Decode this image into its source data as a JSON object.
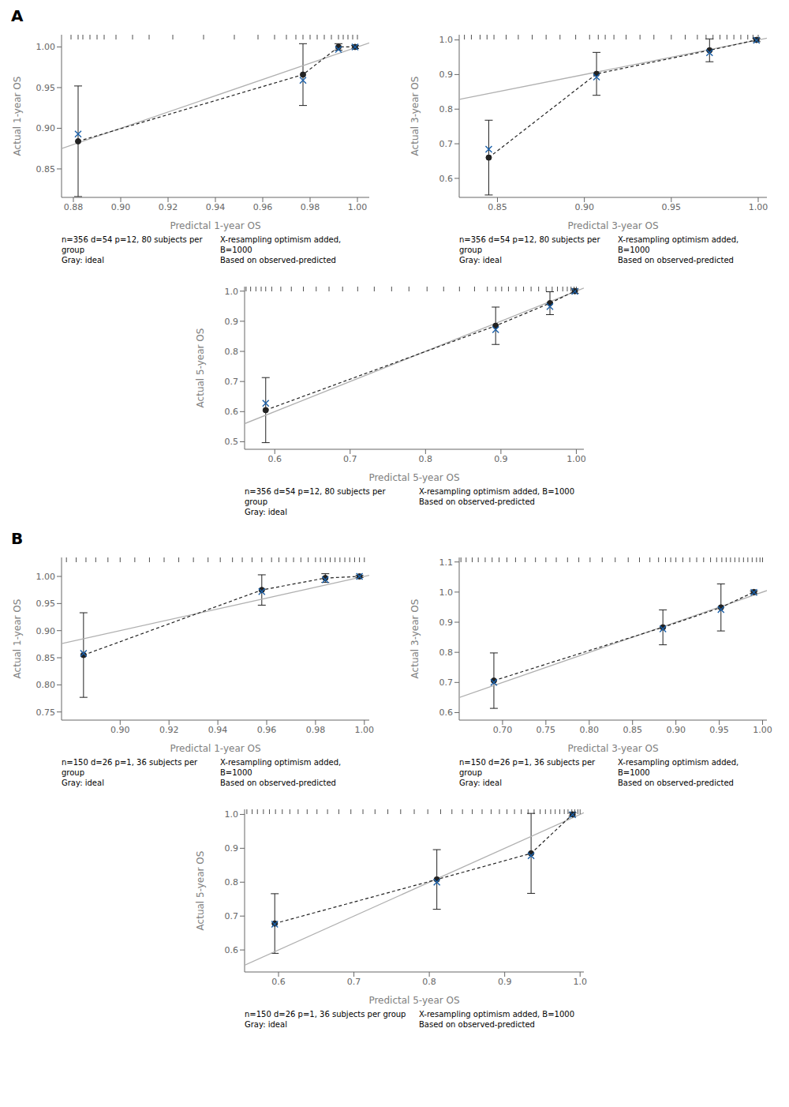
{
  "chart_data": [
    {
      "type": "line",
      "title": "A",
      "xlabel": "Predictal 1-year OS",
      "ylabel": "Actual 1-year OS",
      "xlim": [
        0.875,
        1.005
      ],
      "ylim": [
        0.815,
        1.015
      ],
      "xticks": [
        0.88,
        {
          "value": 0.9,
          "label": "0.90"
        },
        0.92,
        0.94,
        0.96,
        0.98,
        {
          "value": 1,
          "label": "1.00"
        }
      ],
      "yticks": [
        0.85,
        {
          "value": 0.9,
          "label": "0.90"
        },
        0.95,
        {
          "value": 1,
          "label": "1.00"
        }
      ],
      "series": [
        {
          "type": "line",
          "color": "#b0b0b0",
          "line_style": "solid",
          "marker": "none",
          "x": [
            0.875,
            1.005
          ],
          "values": [
            0.875,
            1.005
          ]
        },
        {
          "type": "line",
          "color": "#222222",
          "line_style": "dashed",
          "marker": "circle",
          "x": [
            0.882,
            0.977,
            0.992,
            0.999
          ],
          "values": [
            0.884,
            0.966,
            1.0,
            1.0
          ],
          "yerr_lo": [
            0.068,
            0.038,
            0.004,
            0.002
          ],
          "yerr_hi": [
            0.068,
            0.038,
            0.004,
            0.002
          ]
        },
        {
          "type": "scatter",
          "color": "#1a5fa8",
          "marker": "x",
          "x": [
            0.882,
            0.977,
            0.992,
            0.999
          ],
          "values": [
            0.893,
            0.959,
            0.997,
            1.0
          ]
        },
        {
          "type": "rug",
          "color": "#222222",
          "x": [
            0.879,
            0.882,
            0.884,
            0.887,
            0.89,
            0.893,
            0.898,
            0.905,
            0.912,
            0.922,
            0.935,
            0.948,
            0.958,
            0.965,
            0.97,
            0.974,
            0.977,
            0.98,
            0.983,
            0.986,
            0.989,
            0.992,
            0.994,
            0.996,
            0.998,
            1.0
          ]
        }
      ],
      "annotations": [
        "n=356 d=54 p=12, 80 subjects per group\nGray: ideal",
        "X-resampling optimism added, B=1000\nBased on observed-predicted"
      ]
    },
    {
      "type": "line",
      "xlabel": "Predictal 3-year OS",
      "ylabel": "Actual 3-year OS",
      "xlim": [
        0.828,
        1.005
      ],
      "ylim": [
        0.545,
        1.015
      ],
      "xticks": [
        0.85,
        {
          "value": 0.9,
          "label": "0.90"
        },
        0.95,
        {
          "value": 1,
          "label": "1.00"
        }
      ],
      "yticks": [
        0.6,
        0.7,
        0.8,
        0.9,
        {
          "value": 1,
          "label": "1.0"
        }
      ],
      "series": [
        {
          "type": "line",
          "color": "#b0b0b0",
          "line_style": "solid",
          "marker": "none",
          "x": [
            0.828,
            1.005
          ],
          "values": [
            0.828,
            1.005
          ]
        },
        {
          "type": "line",
          "color": "#222222",
          "line_style": "dashed",
          "marker": "circle",
          "x": [
            0.845,
            0.907,
            0.972,
            0.999
          ],
          "values": [
            0.66,
            0.902,
            0.97,
            1.0
          ],
          "yerr_lo": [
            0.108,
            0.062,
            0.033,
            0.005
          ],
          "yerr_hi": [
            0.108,
            0.062,
            0.033,
            0.005
          ]
        },
        {
          "type": "scatter",
          "color": "#1a5fa8",
          "marker": "x",
          "x": [
            0.845,
            0.907,
            0.972,
            0.999
          ],
          "values": [
            0.684,
            0.893,
            0.963,
            0.999
          ]
        },
        {
          "type": "rug",
          "color": "#222222",
          "x": [
            0.831,
            0.835,
            0.84,
            0.844,
            0.848,
            0.855,
            0.862,
            0.87,
            0.878,
            0.886,
            0.895,
            0.903,
            0.908,
            0.912,
            0.917,
            0.924,
            0.932,
            0.94,
            0.95,
            0.958,
            0.965,
            0.97,
            0.974,
            0.978,
            0.982,
            0.986,
            0.99,
            0.994,
            0.997,
            1.0
          ]
        }
      ],
      "annotations": [
        "n=356 d=54 p=12, 80 subjects per group\nGray: ideal",
        "X-resampling optimism added, B=1000\nBased on observed-predicted"
      ]
    },
    {
      "type": "line",
      "xlabel": "Predictal 5-year OS",
      "ylabel": "Actual 5-year OS",
      "xlim": [
        0.56,
        1.01
      ],
      "ylim": [
        0.475,
        1.015
      ],
      "xticks": [
        0.6,
        0.7,
        0.8,
        0.9,
        {
          "value": 1,
          "label": "1.00"
        }
      ],
      "yticks": [
        0.5,
        0.6,
        0.7,
        0.8,
        0.9,
        {
          "value": 1,
          "label": "1.0"
        }
      ],
      "series": [
        {
          "type": "line",
          "color": "#b0b0b0",
          "line_style": "solid",
          "marker": "none",
          "x": [
            0.56,
            1.01
          ],
          "values": [
            0.56,
            1.01
          ]
        },
        {
          "type": "line",
          "color": "#222222",
          "line_style": "dashed",
          "marker": "circle",
          "x": [
            0.588,
            0.893,
            0.965,
            0.998
          ],
          "values": [
            0.605,
            0.885,
            0.96,
            1.0
          ],
          "yerr_lo": [
            0.108,
            0.062,
            0.038,
            0.007
          ],
          "yerr_hi": [
            0.108,
            0.062,
            0.038,
            0.007
          ]
        },
        {
          "type": "scatter",
          "color": "#1a5fa8",
          "marker": "x",
          "x": [
            0.588,
            0.893,
            0.965,
            0.998
          ],
          "values": [
            0.628,
            0.872,
            0.949,
            0.999
          ]
        },
        {
          "type": "rug",
          "color": "#222222",
          "x": [
            0.562,
            0.568,
            0.575,
            0.582,
            0.588,
            0.596,
            0.608,
            0.622,
            0.638,
            0.655,
            0.672,
            0.69,
            0.71,
            0.732,
            0.755,
            0.778,
            0.802,
            0.824,
            0.845,
            0.865,
            0.882,
            0.893,
            0.901,
            0.91,
            0.92,
            0.93,
            0.94,
            0.95,
            0.96,
            0.968,
            0.975,
            0.982,
            0.988,
            0.993,
            0.997,
            1.0
          ]
        }
      ],
      "annotations": [
        "n=356 d=54 p=12, 80 subjects per group\nGray: ideal",
        "X-resampling optimism added, B=1000\nBased on observed-predicted"
      ]
    },
    {
      "type": "line",
      "title": "B",
      "xlabel": "Predictal 1-year OS",
      "ylabel": "Actual 1-year OS",
      "xlim": [
        0.876,
        1.002
      ],
      "ylim": [
        0.735,
        1.035
      ],
      "xticks": [
        {
          "value": 0.9,
          "label": "0.90"
        },
        0.92,
        0.94,
        0.96,
        0.98,
        {
          "value": 1,
          "label": "1.00"
        }
      ],
      "yticks": [
        0.75,
        {
          "value": 0.8,
          "label": "0.80"
        },
        0.85,
        {
          "value": 0.9,
          "label": "0.90"
        },
        0.95,
        {
          "value": 1,
          "label": "1.00"
        }
      ],
      "series": [
        {
          "type": "line",
          "color": "#b0b0b0",
          "line_style": "solid",
          "marker": "none",
          "x": [
            0.876,
            1.002
          ],
          "values": [
            0.876,
            1.002
          ]
        },
        {
          "type": "line",
          "color": "#222222",
          "line_style": "dashed",
          "marker": "circle",
          "x": [
            0.885,
            0.958,
            0.984,
            0.998
          ],
          "values": [
            0.855,
            0.975,
            0.997,
            1.0
          ],
          "yerr_lo": [
            0.078,
            0.028,
            0.008,
            0.002
          ],
          "yerr_hi": [
            0.078,
            0.028,
            0.008,
            0.002
          ]
        },
        {
          "type": "scatter",
          "color": "#1a5fa8",
          "marker": "x",
          "x": [
            0.885,
            0.958,
            0.984,
            0.998
          ],
          "values": [
            0.858,
            0.972,
            0.994,
            1.0
          ]
        },
        {
          "type": "rug",
          "color": "#222222",
          "x": [
            0.878,
            0.882,
            0.886,
            0.89,
            0.895,
            0.9,
            0.906,
            0.912,
            0.918,
            0.924,
            0.93,
            0.936,
            0.941,
            0.946,
            0.95,
            0.954,
            0.958,
            0.962,
            0.965,
            0.968,
            0.971,
            0.974,
            0.977,
            0.98,
            0.982,
            0.984,
            0.986,
            0.988,
            0.99,
            0.992,
            0.994,
            0.996,
            0.998,
            1.0
          ]
        }
      ],
      "annotations": [
        "n=150 d=26 p=1, 36 subjects per group\nGray: ideal",
        "X-resampling optimism added, B=1000\nBased on observed-predicted"
      ]
    },
    {
      "type": "line",
      "xlabel": "Predictal 3-year OS",
      "ylabel": "Actual 3-year OS",
      "xlim": [
        0.65,
        1.005
      ],
      "ylim": [
        0.575,
        1.115
      ],
      "xticks": [
        {
          "value": 0.7,
          "label": "0.70"
        },
        0.75,
        {
          "value": 0.8,
          "label": "0.80"
        },
        0.85,
        {
          "value": 0.9,
          "label": "0.90"
        },
        0.95,
        {
          "value": 1,
          "label": "1.00"
        }
      ],
      "yticks": [
        0.6,
        0.7,
        0.8,
        0.9,
        {
          "value": 1,
          "label": "1.0"
        },
        1.1
      ],
      "series": [
        {
          "type": "line",
          "color": "#b0b0b0",
          "line_style": "solid",
          "marker": "none",
          "x": [
            0.65,
            1.005
          ],
          "values": [
            0.65,
            1.005
          ]
        },
        {
          "type": "line",
          "color": "#222222",
          "line_style": "dashed",
          "marker": "circle",
          "x": [
            0.69,
            0.885,
            0.952,
            0.99
          ],
          "values": [
            0.706,
            0.883,
            0.949,
            1.0
          ],
          "yerr_lo": [
            0.092,
            0.058,
            0.078,
            0.004
          ],
          "yerr_hi": [
            0.092,
            0.058,
            0.078,
            0.004
          ]
        },
        {
          "type": "scatter",
          "color": "#1a5fa8",
          "marker": "x",
          "x": [
            0.69,
            0.885,
            0.952,
            0.99
          ],
          "values": [
            0.7,
            0.878,
            0.942,
            0.999
          ]
        },
        {
          "type": "rug",
          "color": "#222222",
          "x": [
            0.652,
            0.658,
            0.665,
            0.672,
            0.68,
            0.688,
            0.696,
            0.705,
            0.715,
            0.726,
            0.738,
            0.75,
            0.762,
            0.775,
            0.788,
            0.801,
            0.815,
            0.83,
            0.845,
            0.858,
            0.87,
            0.88,
            0.888,
            0.894,
            0.9,
            0.908,
            0.916,
            0.924,
            0.932,
            0.94,
            0.947,
            0.953,
            0.958,
            0.963,
            0.968,
            0.973,
            0.978,
            0.983,
            0.988,
            0.993,
            0.997,
            1.0
          ]
        }
      ],
      "annotations": [
        "n=150 d=26 p=1, 36 subjects per group\nGray: ideal",
        "X-resampling optimism added, B=1000\nBased on observed-predicted"
      ]
    },
    {
      "type": "line",
      "xlabel": "Predictal 5-year OS",
      "ylabel": "Actual 5-year OS",
      "xlim": [
        0.555,
        1.005
      ],
      "ylim": [
        0.535,
        1.015
      ],
      "xticks": [
        0.6,
        0.7,
        0.8,
        0.9,
        {
          "value": 1,
          "label": "1.0"
        }
      ],
      "yticks": [
        0.6,
        0.7,
        0.8,
        0.9,
        {
          "value": 1,
          "label": "1.0"
        }
      ],
      "series": [
        {
          "type": "line",
          "color": "#b0b0b0",
          "line_style": "solid",
          "marker": "none",
          "x": [
            0.555,
            1.005
          ],
          "values": [
            0.555,
            1.005
          ]
        },
        {
          "type": "line",
          "color": "#222222",
          "line_style": "dashed",
          "marker": "circle",
          "x": [
            0.595,
            0.81,
            0.935,
            0.99
          ],
          "values": [
            0.678,
            0.808,
            0.885,
            1.0
          ],
          "yerr_lo": [
            0.088,
            0.088,
            0.118,
            0.005
          ],
          "yerr_hi": [
            0.088,
            0.088,
            0.118,
            0.005
          ]
        },
        {
          "type": "scatter",
          "color": "#1a5fa8",
          "marker": "x",
          "x": [
            0.595,
            0.81,
            0.935,
            0.99
          ],
          "values": [
            0.676,
            0.8,
            0.878,
            0.999
          ]
        },
        {
          "type": "rug",
          "color": "#222222",
          "x": [
            0.558,
            0.565,
            0.572,
            0.58,
            0.588,
            0.596,
            0.605,
            0.615,
            0.626,
            0.638,
            0.651,
            0.665,
            0.68,
            0.696,
            0.712,
            0.728,
            0.745,
            0.762,
            0.78,
            0.798,
            0.815,
            0.83,
            0.844,
            0.857,
            0.87,
            0.882,
            0.893,
            0.903,
            0.913,
            0.922,
            0.931,
            0.939,
            0.947,
            0.954,
            0.961,
            0.967,
            0.973,
            0.979,
            0.984,
            0.989,
            0.993,
            0.997,
            1.0
          ]
        }
      ],
      "annotations": [
        "n=150 d=26 p=1, 36 subjects per group\nGray: ideal",
        "X-resampling optimism added, B=1000\nBased on observed-predicted"
      ]
    }
  ]
}
